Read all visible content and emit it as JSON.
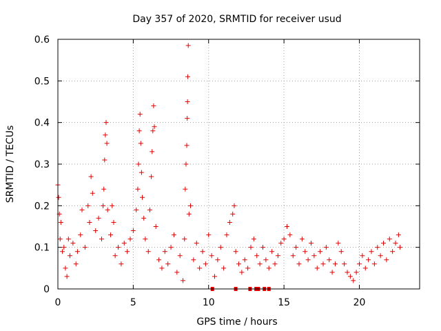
{
  "chart_data": {
    "type": "scatter",
    "title": "Day 357 of 2020, SRMTID for receiver usud",
    "xlabel": "GPS time / hours",
    "ylabel": "SRMTID / TECUs",
    "xlim": [
      0,
      24
    ],
    "ylim": [
      0,
      0.6
    ],
    "xticks": [
      0,
      5,
      10,
      15,
      20
    ],
    "xtick_labels": [
      "0",
      "5",
      "10",
      "15",
      "20"
    ],
    "yticks": [
      0,
      0.1,
      0.2,
      0.3,
      0.4,
      0.5,
      0.6
    ],
    "ytick_labels": [
      "0",
      "0.1",
      "0.2",
      "0.3",
      "0.4",
      "0.5",
      "0.6"
    ],
    "grid": true,
    "marker": "+",
    "series_color": "#e00000",
    "series": [
      {
        "name": "SRMTID",
        "points": [
          [
            0.0,
            0.25
          ],
          [
            0.05,
            0.22
          ],
          [
            0.1,
            0.18
          ],
          [
            0.15,
            0.12
          ],
          [
            0.2,
            0.16
          ],
          [
            0.3,
            0.09
          ],
          [
            0.4,
            0.1
          ],
          [
            0.5,
            0.05
          ],
          [
            0.6,
            0.03
          ],
          [
            0.7,
            0.12
          ],
          [
            0.8,
            0.08
          ],
          [
            1.0,
            0.11
          ],
          [
            1.2,
            0.06
          ],
          [
            1.3,
            0.09
          ],
          [
            1.5,
            0.13
          ],
          [
            1.6,
            0.19
          ],
          [
            1.8,
            0.1
          ],
          [
            2.0,
            0.2
          ],
          [
            2.1,
            0.16
          ],
          [
            2.2,
            0.27
          ],
          [
            2.3,
            0.23
          ],
          [
            2.5,
            0.14
          ],
          [
            2.7,
            0.17
          ],
          [
            2.9,
            0.12
          ],
          [
            3.0,
            0.2
          ],
          [
            3.05,
            0.24
          ],
          [
            3.1,
            0.31
          ],
          [
            3.15,
            0.37
          ],
          [
            3.2,
            0.4
          ],
          [
            3.25,
            0.35
          ],
          [
            3.3,
            0.19
          ],
          [
            3.5,
            0.13
          ],
          [
            3.6,
            0.2
          ],
          [
            3.7,
            0.16
          ],
          [
            3.8,
            0.08
          ],
          [
            4.0,
            0.1
          ],
          [
            4.2,
            0.06
          ],
          [
            4.4,
            0.11
          ],
          [
            4.6,
            0.09
          ],
          [
            4.8,
            0.12
          ],
          [
            5.0,
            0.14
          ],
          [
            5.2,
            0.19
          ],
          [
            5.3,
            0.24
          ],
          [
            5.35,
            0.3
          ],
          [
            5.4,
            0.38
          ],
          [
            5.45,
            0.42
          ],
          [
            5.5,
            0.35
          ],
          [
            5.55,
            0.28
          ],
          [
            5.6,
            0.22
          ],
          [
            5.7,
            0.17
          ],
          [
            5.8,
            0.12
          ],
          [
            6.0,
            0.09
          ],
          [
            6.1,
            0.19
          ],
          [
            6.2,
            0.27
          ],
          [
            6.25,
            0.33
          ],
          [
            6.3,
            0.38
          ],
          [
            6.35,
            0.44
          ],
          [
            6.4,
            0.39
          ],
          [
            6.5,
            0.15
          ],
          [
            6.7,
            0.07
          ],
          [
            6.9,
            0.05
          ],
          [
            7.1,
            0.09
          ],
          [
            7.3,
            0.06
          ],
          [
            7.5,
            0.1
          ],
          [
            7.7,
            0.13
          ],
          [
            7.9,
            0.04
          ],
          [
            8.1,
            0.08
          ],
          [
            8.3,
            0.02
          ],
          [
            8.4,
            0.12
          ],
          [
            8.45,
            0.24
          ],
          [
            8.5,
            0.3
          ],
          [
            8.55,
            0.345
          ],
          [
            8.58,
            0.41
          ],
          [
            8.6,
            0.45
          ],
          [
            8.62,
            0.51
          ],
          [
            8.65,
            0.585
          ],
          [
            8.7,
            0.18
          ],
          [
            8.8,
            0.2
          ],
          [
            9.0,
            0.07
          ],
          [
            9.2,
            0.11
          ],
          [
            9.4,
            0.05
          ],
          [
            9.6,
            0.09
          ],
          [
            9.8,
            0.06
          ],
          [
            10.0,
            0.13
          ],
          [
            10.2,
            0.08
          ],
          [
            10.4,
            0.03
          ],
          [
            10.6,
            0.07
          ],
          [
            10.8,
            0.1
          ],
          [
            11.0,
            0.05
          ],
          [
            11.2,
            0.13
          ],
          [
            11.4,
            0.16
          ],
          [
            11.6,
            0.18
          ],
          [
            11.7,
            0.2
          ],
          [
            11.8,
            0.09
          ],
          [
            12.0,
            0.06
          ],
          [
            12.2,
            0.04
          ],
          [
            12.4,
            0.07
          ],
          [
            12.6,
            0.05
          ],
          [
            12.8,
            0.1
          ],
          [
            13.0,
            0.12
          ],
          [
            13.2,
            0.08
          ],
          [
            13.4,
            0.06
          ],
          [
            13.6,
            0.1
          ],
          [
            13.8,
            0.07
          ],
          [
            14.0,
            0.05
          ],
          [
            14.2,
            0.09
          ],
          [
            14.4,
            0.06
          ],
          [
            14.6,
            0.08
          ],
          [
            14.8,
            0.11
          ],
          [
            15.0,
            0.12
          ],
          [
            15.2,
            0.15
          ],
          [
            15.4,
            0.13
          ],
          [
            15.6,
            0.08
          ],
          [
            15.8,
            0.1
          ],
          [
            16.0,
            0.06
          ],
          [
            16.2,
            0.12
          ],
          [
            16.4,
            0.09
          ],
          [
            16.6,
            0.07
          ],
          [
            16.8,
            0.11
          ],
          [
            17.0,
            0.08
          ],
          [
            17.2,
            0.05
          ],
          [
            17.4,
            0.09
          ],
          [
            17.6,
            0.06
          ],
          [
            17.8,
            0.1
          ],
          [
            18.0,
            0.07
          ],
          [
            18.2,
            0.04
          ],
          [
            18.4,
            0.06
          ],
          [
            18.6,
            0.11
          ],
          [
            18.8,
            0.09
          ],
          [
            19.0,
            0.06
          ],
          [
            19.2,
            0.04
          ],
          [
            19.4,
            0.03
          ],
          [
            19.6,
            0.02
          ],
          [
            19.8,
            0.04
          ],
          [
            20.0,
            0.06
          ],
          [
            20.2,
            0.08
          ],
          [
            20.4,
            0.05
          ],
          [
            20.6,
            0.07
          ],
          [
            20.8,
            0.09
          ],
          [
            21.0,
            0.06
          ],
          [
            21.2,
            0.1
          ],
          [
            21.4,
            0.08
          ],
          [
            21.6,
            0.11
          ],
          [
            21.8,
            0.07
          ],
          [
            22.0,
            0.12
          ],
          [
            22.2,
            0.09
          ],
          [
            22.4,
            0.11
          ],
          [
            22.6,
            0.13
          ],
          [
            22.7,
            0.1
          ]
        ]
      }
    ],
    "zero_markers_x": [
      10.25,
      11.8,
      12.75,
      13.15,
      13.3,
      13.7,
      14.0
    ]
  }
}
